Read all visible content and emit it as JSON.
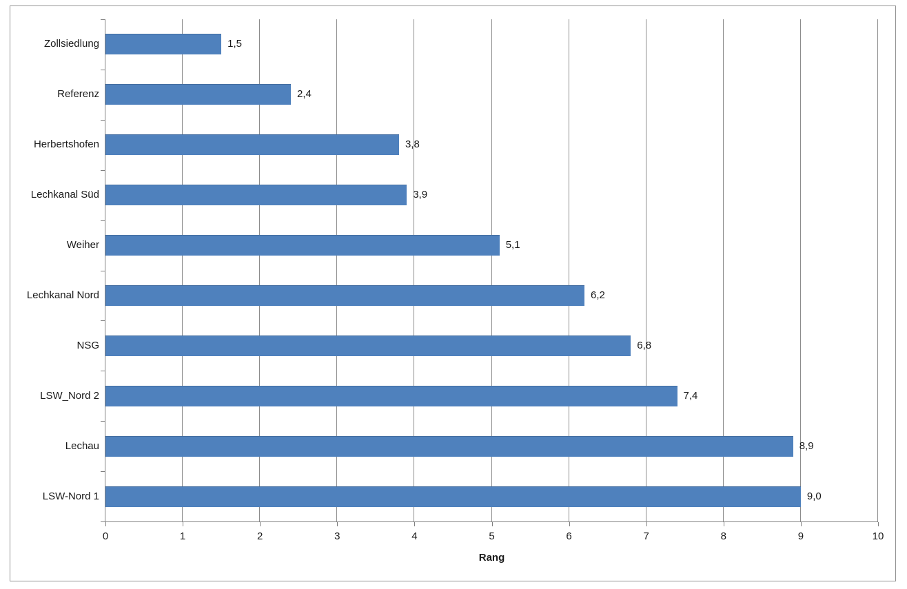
{
  "chart_data": {
    "type": "bar",
    "orientation": "horizontal",
    "title": "",
    "xlabel": "Rang",
    "ylabel": "",
    "categories": [
      "Zollsiedlung",
      "Referenz",
      "Herbertshofen",
      "Lechkanal Süd",
      "Weiher",
      "Lechkanal Nord",
      "NSG",
      "LSW_Nord 2",
      "Lechau",
      "LSW-Nord 1"
    ],
    "values": [
      1.5,
      2.4,
      3.8,
      3.9,
      5.1,
      6.2,
      6.8,
      7.4,
      8.9,
      9.0
    ],
    "value_labels": [
      "1,5",
      "2,4",
      "3,8",
      "3,9",
      "5,1",
      "6,2",
      "6,8",
      "7,4",
      "8,9",
      "9,0"
    ],
    "xlim": [
      0,
      10
    ],
    "x_ticks": [
      0,
      1,
      2,
      3,
      4,
      5,
      6,
      7,
      8,
      9,
      10
    ],
    "x_tick_labels": [
      "0",
      "1",
      "2",
      "3",
      "4",
      "5",
      "6",
      "7",
      "8",
      "9",
      "10"
    ],
    "gridlines": "vertical",
    "legend": false
  },
  "colors": {
    "bar": "#4F81BD",
    "gridline": "#8C8C8C",
    "axis": "#7F7F7F",
    "frame_border": "#919191",
    "text": "#1A1A1A",
    "background": "#FFFFFF"
  }
}
